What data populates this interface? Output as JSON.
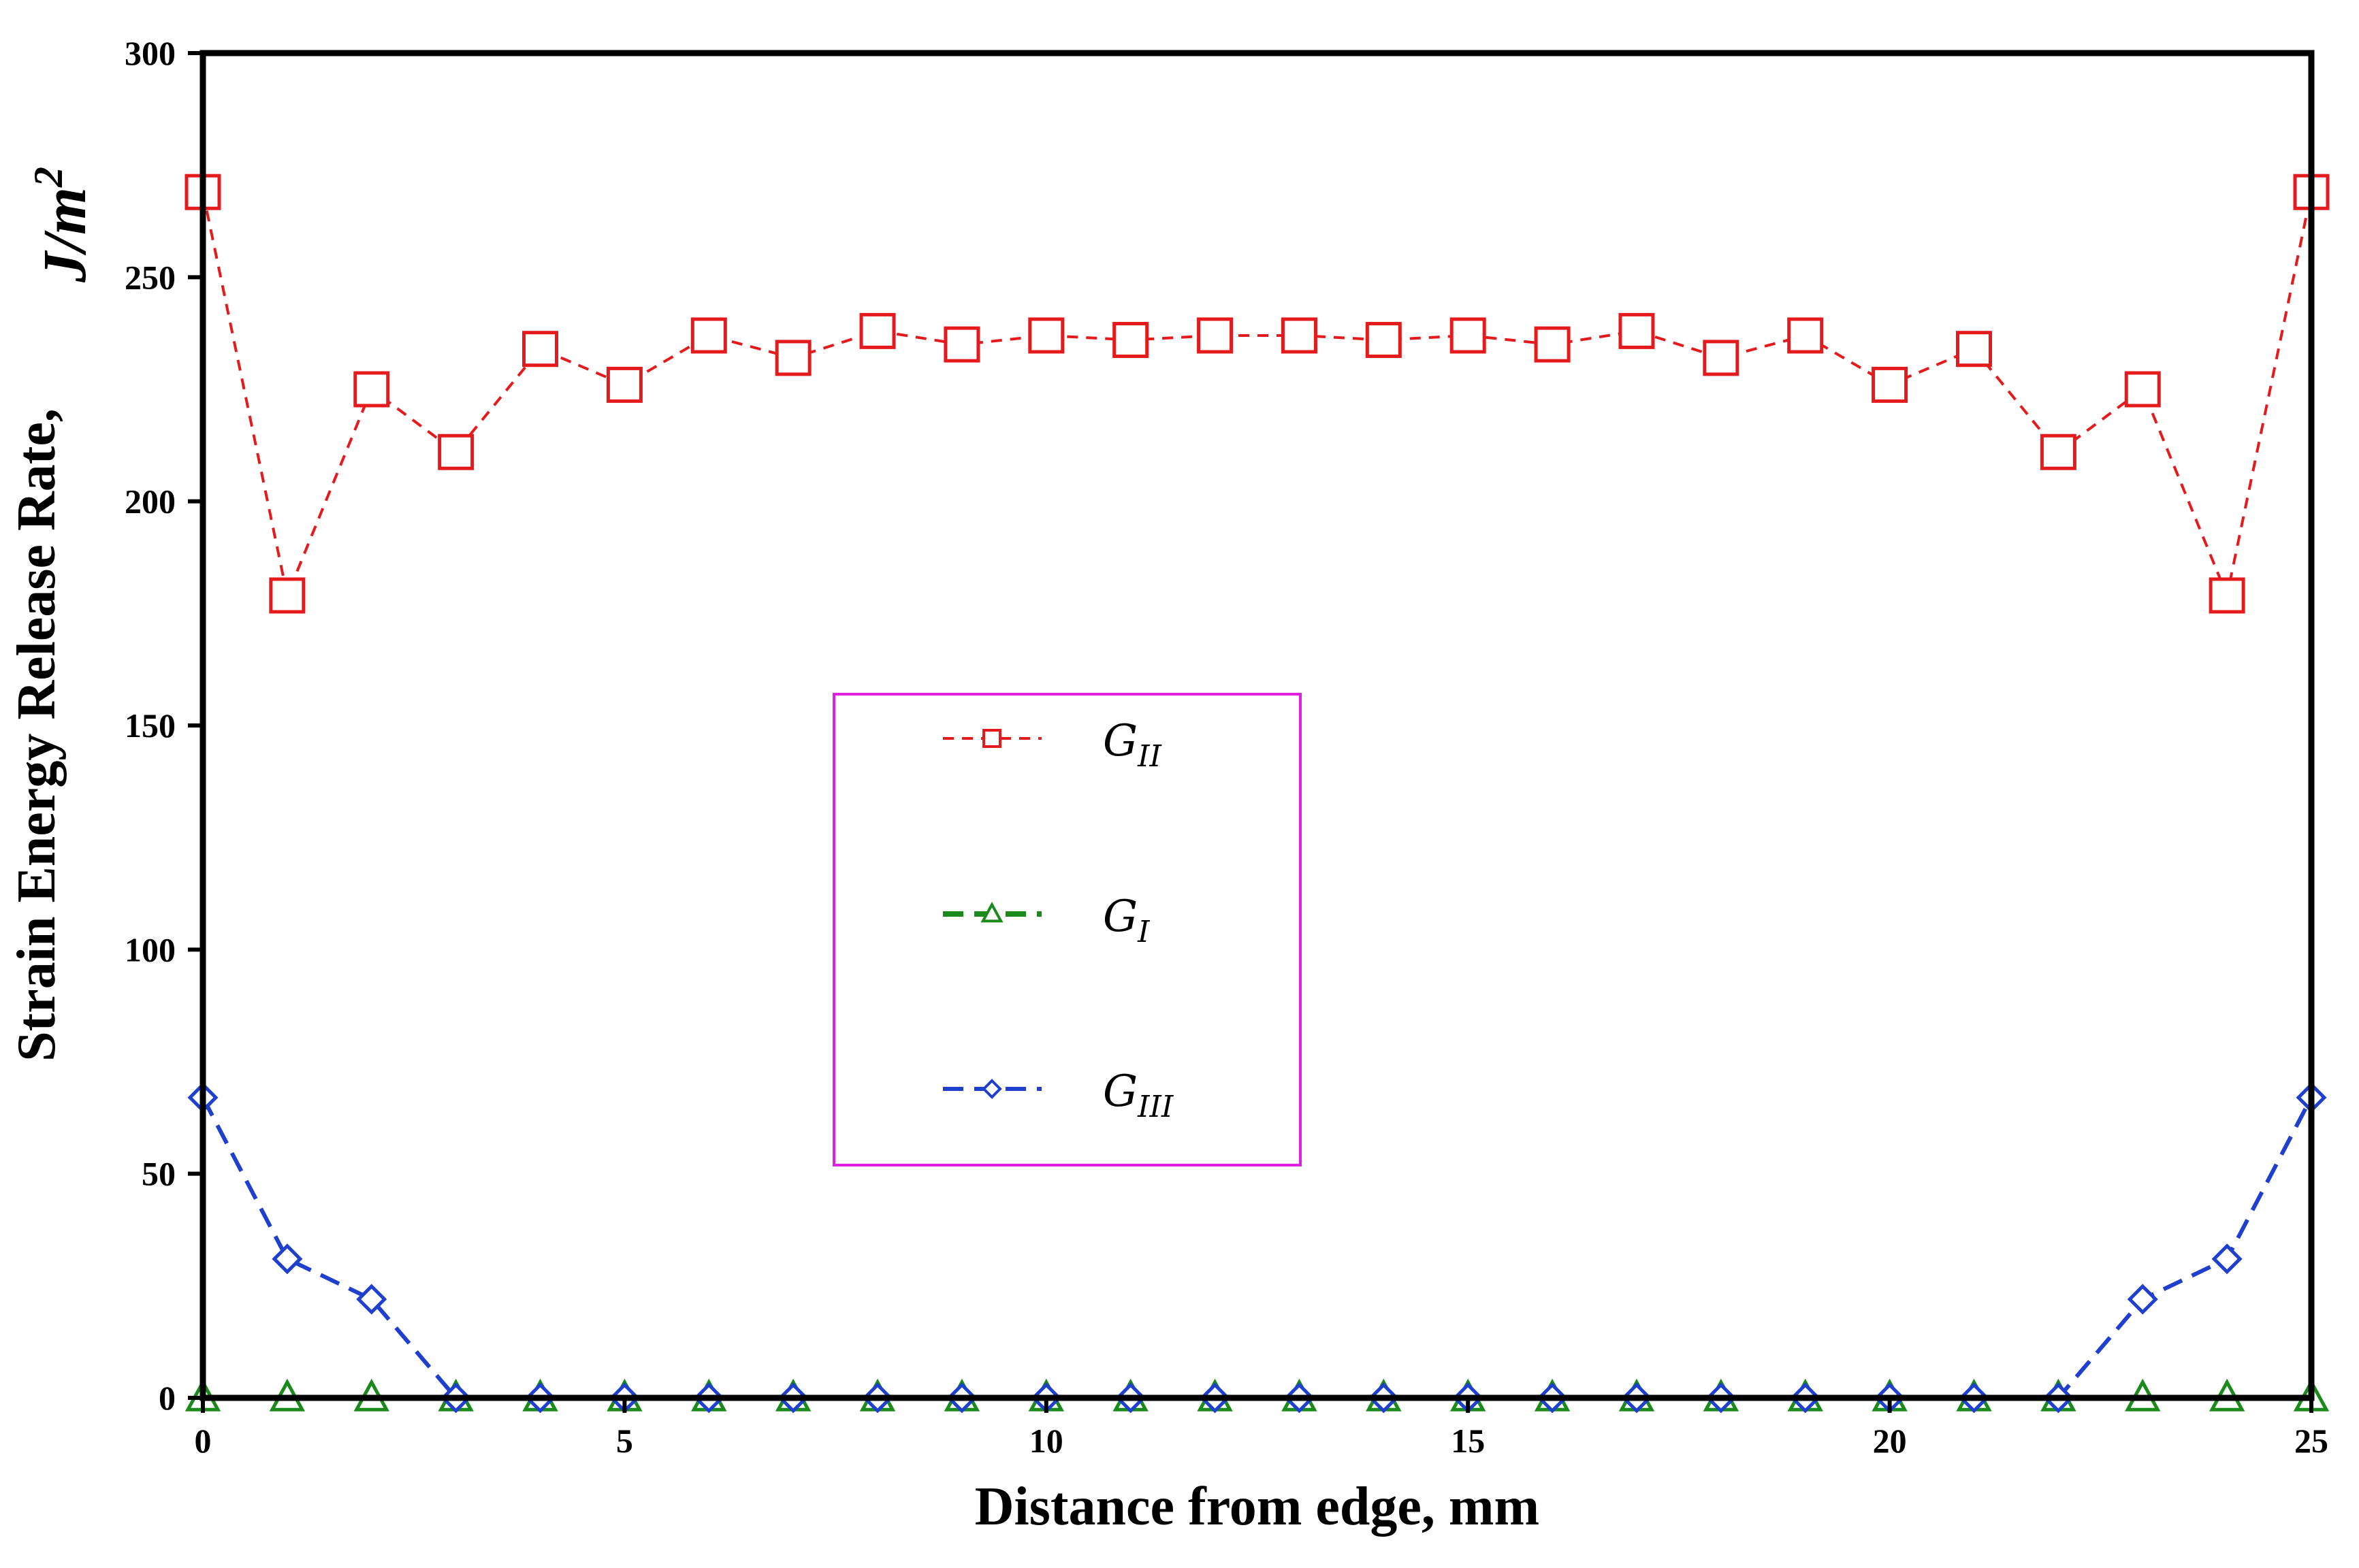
{
  "chart_data": {
    "type": "line",
    "xlabel": "Distance from edge, mm",
    "ylabel": "Strain Energy Release Rate,",
    "ylabel_unit": "J/m",
    "ylabel_unit_exp": "2",
    "xlim": [
      0,
      25
    ],
    "ylim": [
      0,
      300
    ],
    "xticks": [
      0,
      5,
      10,
      15,
      20,
      25
    ],
    "yticks": [
      0,
      50,
      100,
      150,
      200,
      250,
      300
    ],
    "grid": false,
    "legend_position": "center",
    "x": [
      0,
      1,
      2,
      3,
      4,
      5,
      6,
      7,
      8,
      9,
      10,
      11,
      12,
      13,
      14,
      15,
      16,
      17,
      18,
      19,
      20,
      21,
      22,
      23,
      24,
      25
    ],
    "series": [
      {
        "name": "G",
        "subscript": "II",
        "color": "#e41a1c",
        "marker": "square",
        "values": [
          269,
          179,
          225,
          211,
          234,
          226,
          237,
          232,
          238,
          235,
          237,
          236,
          237,
          237,
          236,
          237,
          235,
          238,
          232,
          237,
          226,
          234,
          211,
          225,
          179,
          269
        ]
      },
      {
        "name": "G",
        "subscript": "I",
        "color": "#1a8a1a",
        "marker": "triangle",
        "values": [
          0,
          0,
          0,
          0,
          0,
          0,
          0,
          0,
          0,
          0,
          0,
          0,
          0,
          0,
          0,
          0,
          0,
          0,
          0,
          0,
          0,
          0,
          0,
          0,
          0,
          0
        ]
      },
      {
        "name": "G",
        "subscript": "III",
        "color": "#1f3fcf",
        "marker": "diamond",
        "values": [
          67,
          31,
          22,
          0,
          0,
          0,
          0,
          0,
          0,
          0,
          0,
          0,
          0,
          0,
          0,
          0,
          0,
          0,
          0,
          0,
          0,
          0,
          0,
          22,
          31,
          67
        ]
      }
    ],
    "legend_box_color": "#e020e0"
  }
}
